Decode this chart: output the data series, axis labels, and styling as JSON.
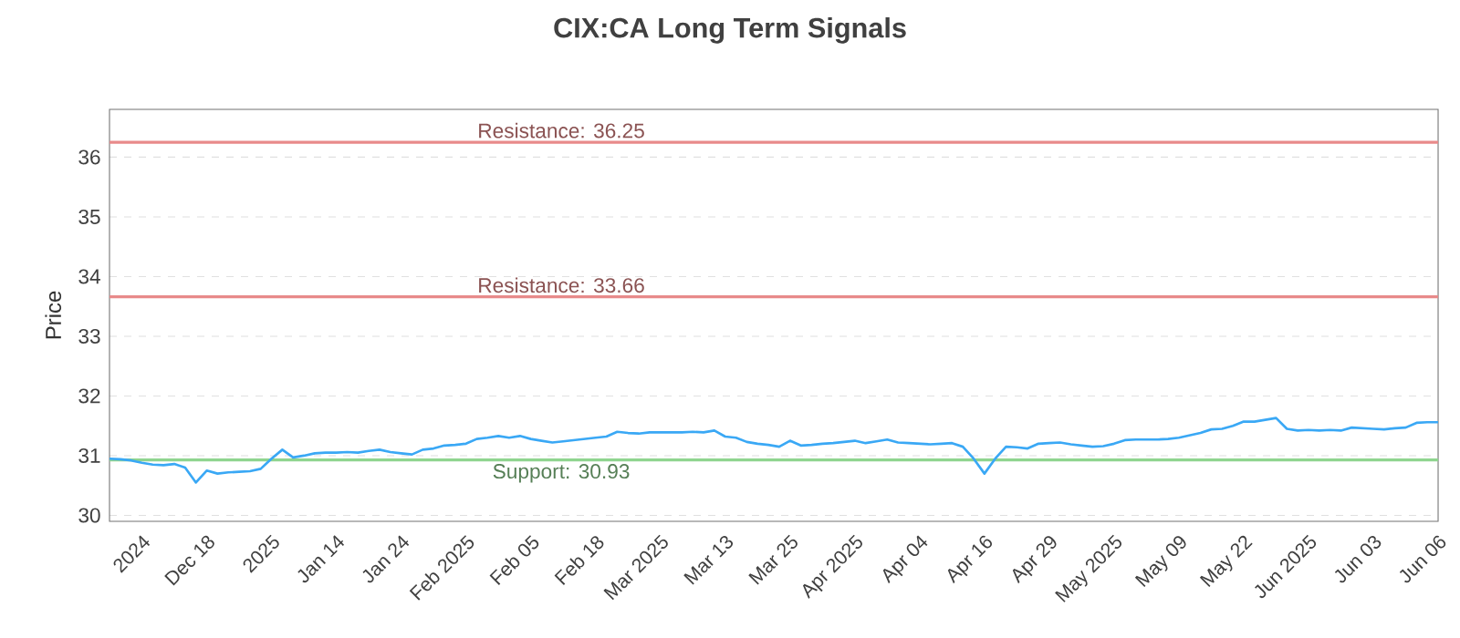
{
  "chart_data": {
    "type": "line",
    "title": "CIX:CA Long Term Signals",
    "ylabel": "Price",
    "categories": [
      null,
      null,
      null,
      "2024",
      null,
      null,
      null,
      null,
      null,
      "Dec 18",
      null,
      null,
      null,
      null,
      null,
      "2025",
      null,
      null,
      null,
      null,
      null,
      "Jan 14",
      null,
      null,
      null,
      null,
      null,
      "Jan 24",
      null,
      null,
      null,
      null,
      null,
      "Feb 2025",
      null,
      null,
      null,
      null,
      null,
      "Feb 05",
      null,
      null,
      null,
      null,
      null,
      "Feb 18",
      null,
      null,
      null,
      null,
      null,
      "Mar 2025",
      null,
      null,
      null,
      null,
      null,
      "Mar 13",
      null,
      null,
      null,
      null,
      null,
      "Mar 25",
      null,
      null,
      null,
      null,
      null,
      "Apr 2025",
      null,
      null,
      null,
      null,
      null,
      "Apr 04",
      null,
      null,
      null,
      null,
      null,
      "Apr 16",
      null,
      null,
      null,
      null,
      null,
      "Apr 29",
      null,
      null,
      null,
      null,
      null,
      "May 2025",
      null,
      null,
      null,
      null,
      null,
      "May 09",
      null,
      null,
      null,
      null,
      null,
      "May 22",
      null,
      null,
      null,
      null,
      null,
      "Jun 2025",
      null,
      null,
      null,
      null,
      null,
      "Jun 03",
      null,
      null,
      null,
      null,
      null,
      "Jun 06"
    ],
    "series": [
      {
        "color": "#3aa8f5",
        "values": [
          30.95,
          30.94,
          30.92,
          30.88,
          30.85,
          30.84,
          30.86,
          30.8,
          30.55,
          30.75,
          30.7,
          30.72,
          30.73,
          30.74,
          30.78,
          30.95,
          31.1,
          30.97,
          31.0,
          31.04,
          31.05,
          31.05,
          31.06,
          31.05,
          31.08,
          31.1,
          31.06,
          31.04,
          31.02,
          31.1,
          31.12,
          31.17,
          31.18,
          31.2,
          31.28,
          31.3,
          31.33,
          31.3,
          31.33,
          31.28,
          31.25,
          31.22,
          31.24,
          31.26,
          31.28,
          31.3,
          31.32,
          31.4,
          31.38,
          31.37,
          31.39,
          31.39,
          31.39,
          31.39,
          31.4,
          31.39,
          31.42,
          31.32,
          31.3,
          31.23,
          31.2,
          31.18,
          31.15,
          31.25,
          31.17,
          31.18,
          31.2,
          31.21,
          31.23,
          31.25,
          31.21,
          31.24,
          31.27,
          31.22,
          31.21,
          31.2,
          31.19,
          31.2,
          31.21,
          31.15,
          30.95,
          30.7,
          30.95,
          31.15,
          31.14,
          31.12,
          31.2,
          31.21,
          31.22,
          31.19,
          31.17,
          31.15,
          31.16,
          31.2,
          31.26,
          31.27,
          31.27,
          31.27,
          31.28,
          31.3,
          31.34,
          31.38,
          31.44,
          31.45,
          31.5,
          31.57,
          31.57,
          31.6,
          31.63,
          31.45,
          31.42,
          31.43,
          31.42,
          31.43,
          31.42,
          31.47,
          31.46,
          31.45,
          31.44,
          31.46,
          31.47,
          31.55,
          31.56,
          31.56
        ]
      }
    ],
    "ylim": [
      29.9,
      36.8
    ],
    "yticks": [
      30,
      31,
      32,
      33,
      34,
      35,
      36
    ],
    "grid": "y",
    "marker": "none",
    "line_style": "solid",
    "ref_lines": [
      {
        "axis": "y",
        "value": 36.25,
        "label": "Resistance: 36.25",
        "color": "#e88a8a"
      },
      {
        "axis": "y",
        "value": 33.66,
        "label": "Resistance: 33.66",
        "color": "#e88a8a"
      },
      {
        "axis": "y",
        "value": 30.93,
        "label": "Support: 30.93",
        "color": "#8fd48f"
      }
    ]
  }
}
